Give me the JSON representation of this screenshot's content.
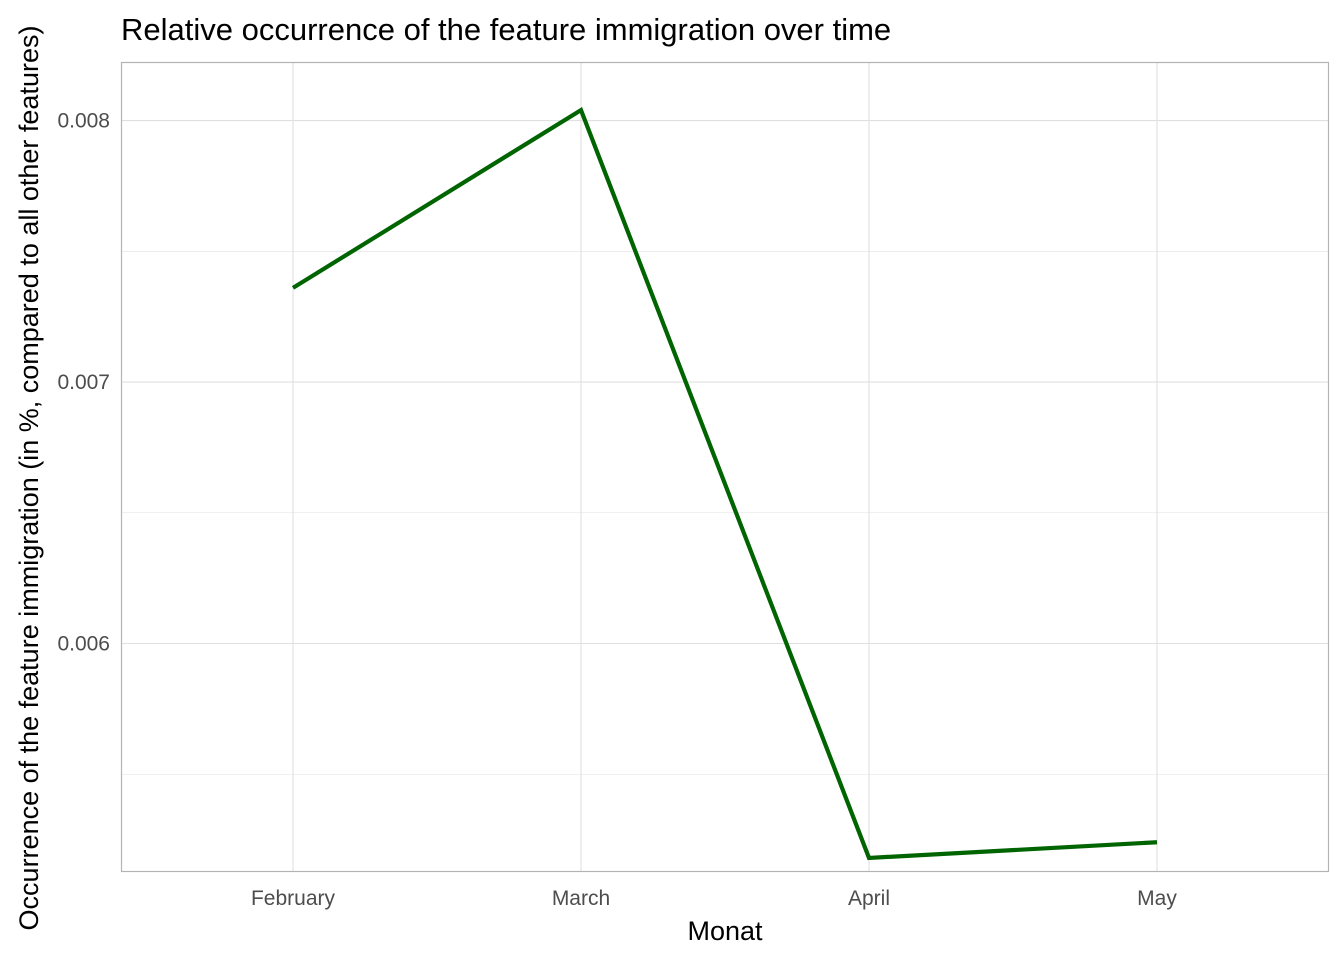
{
  "chart_data": {
    "type": "line",
    "title": "Relative occurrence of the feature immigration over time",
    "xlabel": "Monat",
    "ylabel": "Occurrence of the feature immigration (in %, compared to all other features)",
    "categories": [
      "February",
      "March",
      "April",
      "May"
    ],
    "series": [
      {
        "values": [
          0.00736,
          0.00804,
          0.00518,
          0.00524
        ]
      }
    ],
    "ylim": [
      0.00513,
      0.00822
    ],
    "yticks": [
      0.006,
      0.007,
      0.008
    ],
    "ytick_labels": [
      "0.006",
      "0.007",
      "0.008"
    ],
    "grid": true,
    "line_color": "#006400",
    "grid_color": "#e0e0e0",
    "panel_border_color": "#b3b3b3"
  }
}
